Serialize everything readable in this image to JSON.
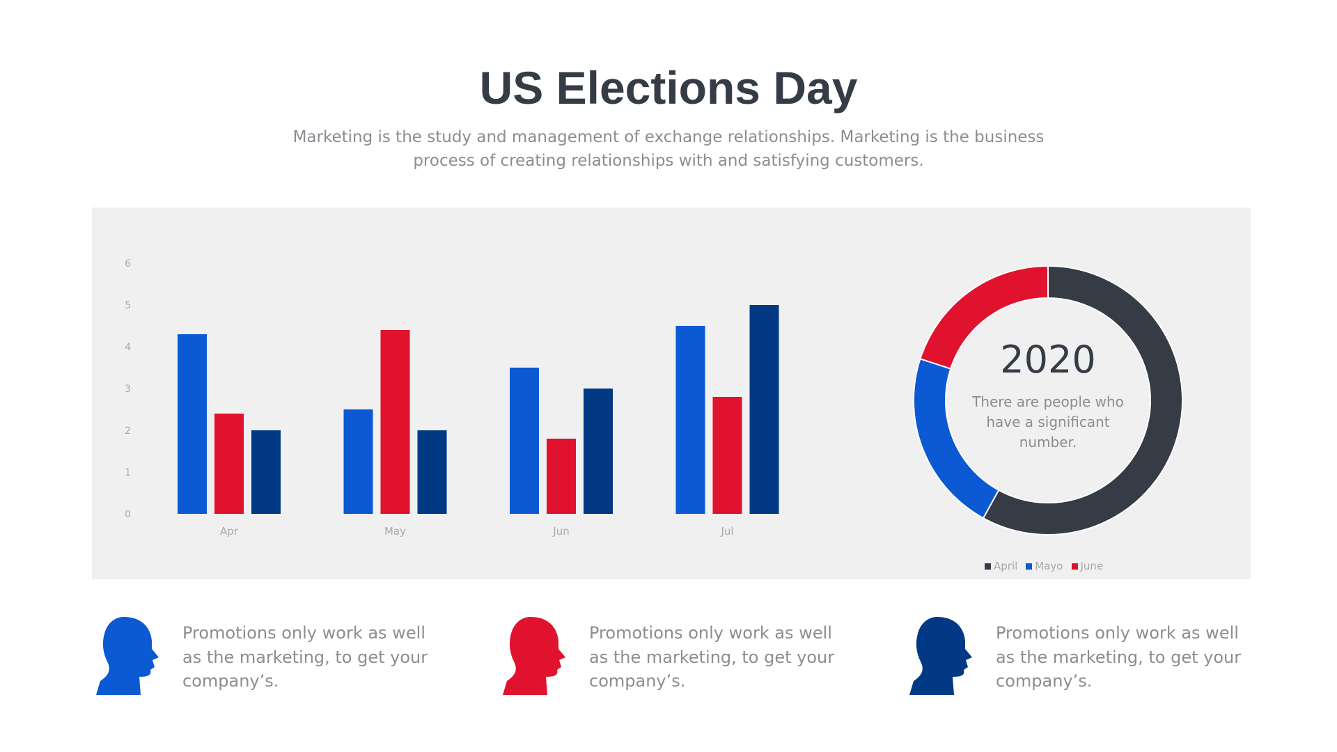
{
  "header": {
    "title": "US Elections Day",
    "subtitle": "Marketing is the study and management of exchange relationships. Marketing is the business process of creating relationships with and satisfying customers."
  },
  "colors": {
    "blue": "#0b59d3",
    "red": "#e1122e",
    "navy": "#013984",
    "dark": "#353c45",
    "panel": "#f0f0f0"
  },
  "chart_data": [
    {
      "type": "bar",
      "categories": [
        "Apr",
        "May",
        "Jun",
        "Jul"
      ],
      "series": [
        {
          "values": [
            4.3,
            2.5,
            3.5,
            4.5
          ],
          "color": "#0b59d3"
        },
        {
          "values": [
            2.4,
            4.4,
            1.8,
            2.8
          ],
          "color": "#e1122e"
        },
        {
          "values": [
            2.0,
            2.0,
            3.0,
            5.0
          ],
          "color": "#013984"
        }
      ],
      "yticks": [
        "0",
        "1",
        "2",
        "3",
        "4",
        "5",
        "6"
      ],
      "ylim": [
        0,
        6
      ],
      "grid": false
    },
    {
      "type": "pie",
      "donut": true,
      "center_title": "2020",
      "center_text": "There are people who have a significant number.",
      "slices": [
        {
          "label": "April",
          "value": 58,
          "color": "#353c45"
        },
        {
          "label": "Mayo",
          "value": 22,
          "color": "#0b59d3"
        },
        {
          "label": "June",
          "value": 20,
          "color": "#e1122e"
        }
      ],
      "legend_position": "bottom-right"
    }
  ],
  "promos": [
    {
      "text": "Promotions only work as well as the marketing, to get your company’s.",
      "icon": "person-head-icon",
      "color": "#0b59d3"
    },
    {
      "text": "Promotions only work as well as the marketing, to get your company’s.",
      "icon": "person-head-icon",
      "color": "#e1122e"
    },
    {
      "text": "Promotions only work as well as the marketing, to get your company’s.",
      "icon": "person-head-icon",
      "color": "#013984"
    }
  ]
}
